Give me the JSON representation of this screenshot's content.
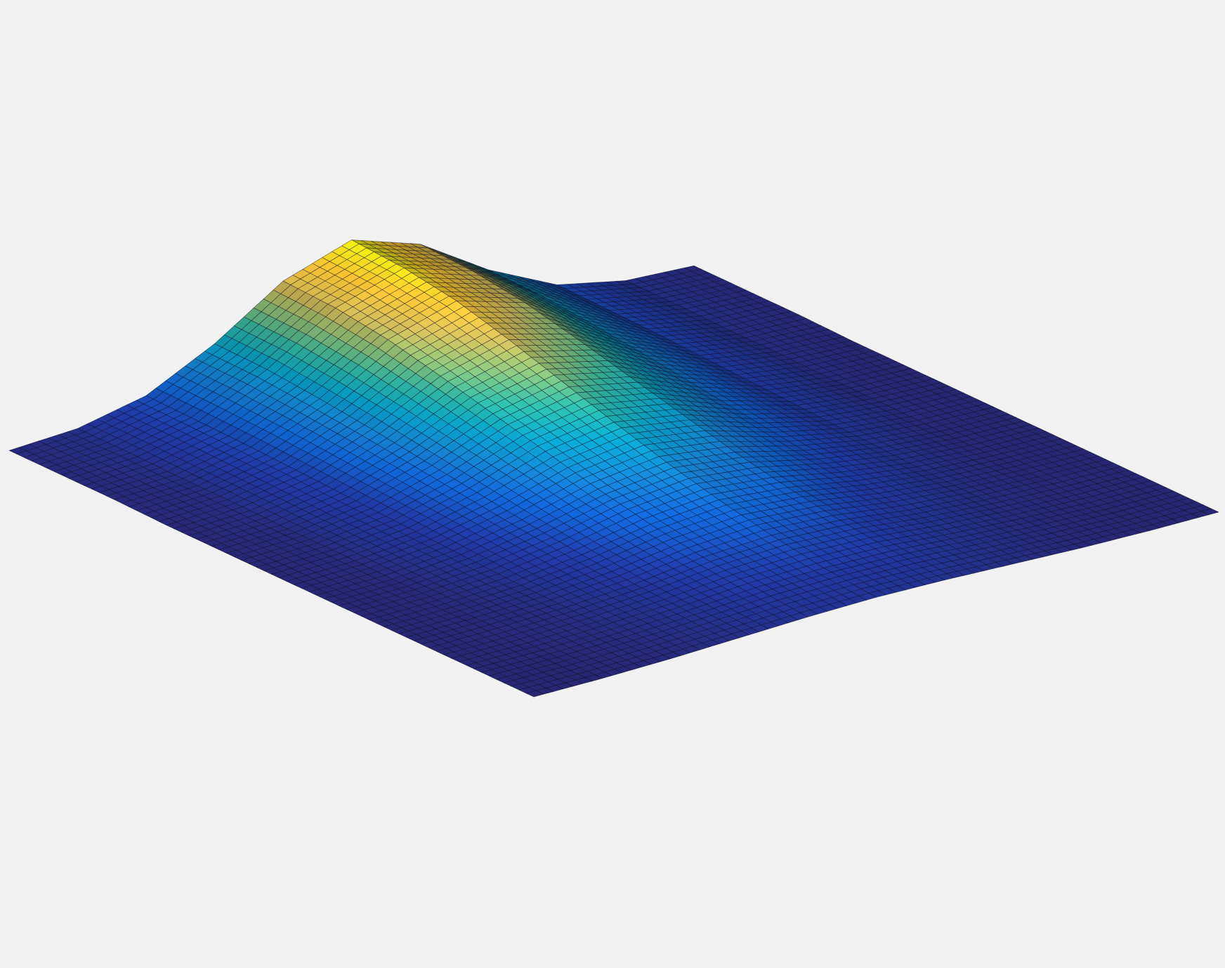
{
  "chart_data": {
    "type": "surface",
    "zlim": [
      0,
      1
    ],
    "colormap": [
      "#2b2a7e",
      "#1f3fb0",
      "#1166d8",
      "#1485d4",
      "#06a4ca",
      "#2eb7a4",
      "#87bf77",
      "#d1bb59",
      "#fec832",
      "#f9fb0e"
    ],
    "z": [
      [
        0.01,
        0.01,
        0.01,
        0,
        0,
        0,
        0,
        0,
        0,
        0,
        0
      ],
      [
        0.04,
        0.04,
        0.03,
        0.03,
        0.02,
        0.02,
        0.01,
        0.01,
        0.01,
        0,
        0
      ],
      [
        0.16,
        0.15,
        0.14,
        0.12,
        0.1,
        0.08,
        0.06,
        0.04,
        0.03,
        0.02,
        0.01
      ],
      [
        0.44,
        0.43,
        0.39,
        0.34,
        0.28,
        0.22,
        0.16,
        0.11,
        0.07,
        0.05,
        0.03
      ],
      [
        0.81,
        0.79,
        0.73,
        0.63,
        0.52,
        0.41,
        0.3,
        0.21,
        0.14,
        0.09,
        0.05
      ],
      [
        1,
        0.97,
        0.9,
        0.78,
        0.64,
        0.5,
        0.37,
        0.26,
        0.17,
        0.1,
        0.06
      ],
      [
        0.81,
        0.79,
        0.73,
        0.63,
        0.52,
        0.41,
        0.3,
        0.21,
        0.14,
        0.09,
        0.05
      ],
      [
        0.44,
        0.43,
        0.39,
        0.34,
        0.28,
        0.22,
        0.16,
        0.11,
        0.07,
        0.05,
        0.03
      ],
      [
        0.16,
        0.15,
        0.14,
        0.12,
        0.1,
        0.08,
        0.06,
        0.04,
        0.03,
        0.02,
        0.01
      ],
      [
        0.04,
        0.04,
        0.03,
        0.03,
        0.02,
        0.02,
        0.01,
        0.01,
        0.01,
        0,
        0
      ],
      [
        0.01,
        0.01,
        0.01,
        0,
        0,
        0,
        0,
        0,
        0,
        0,
        0
      ]
    ]
  }
}
